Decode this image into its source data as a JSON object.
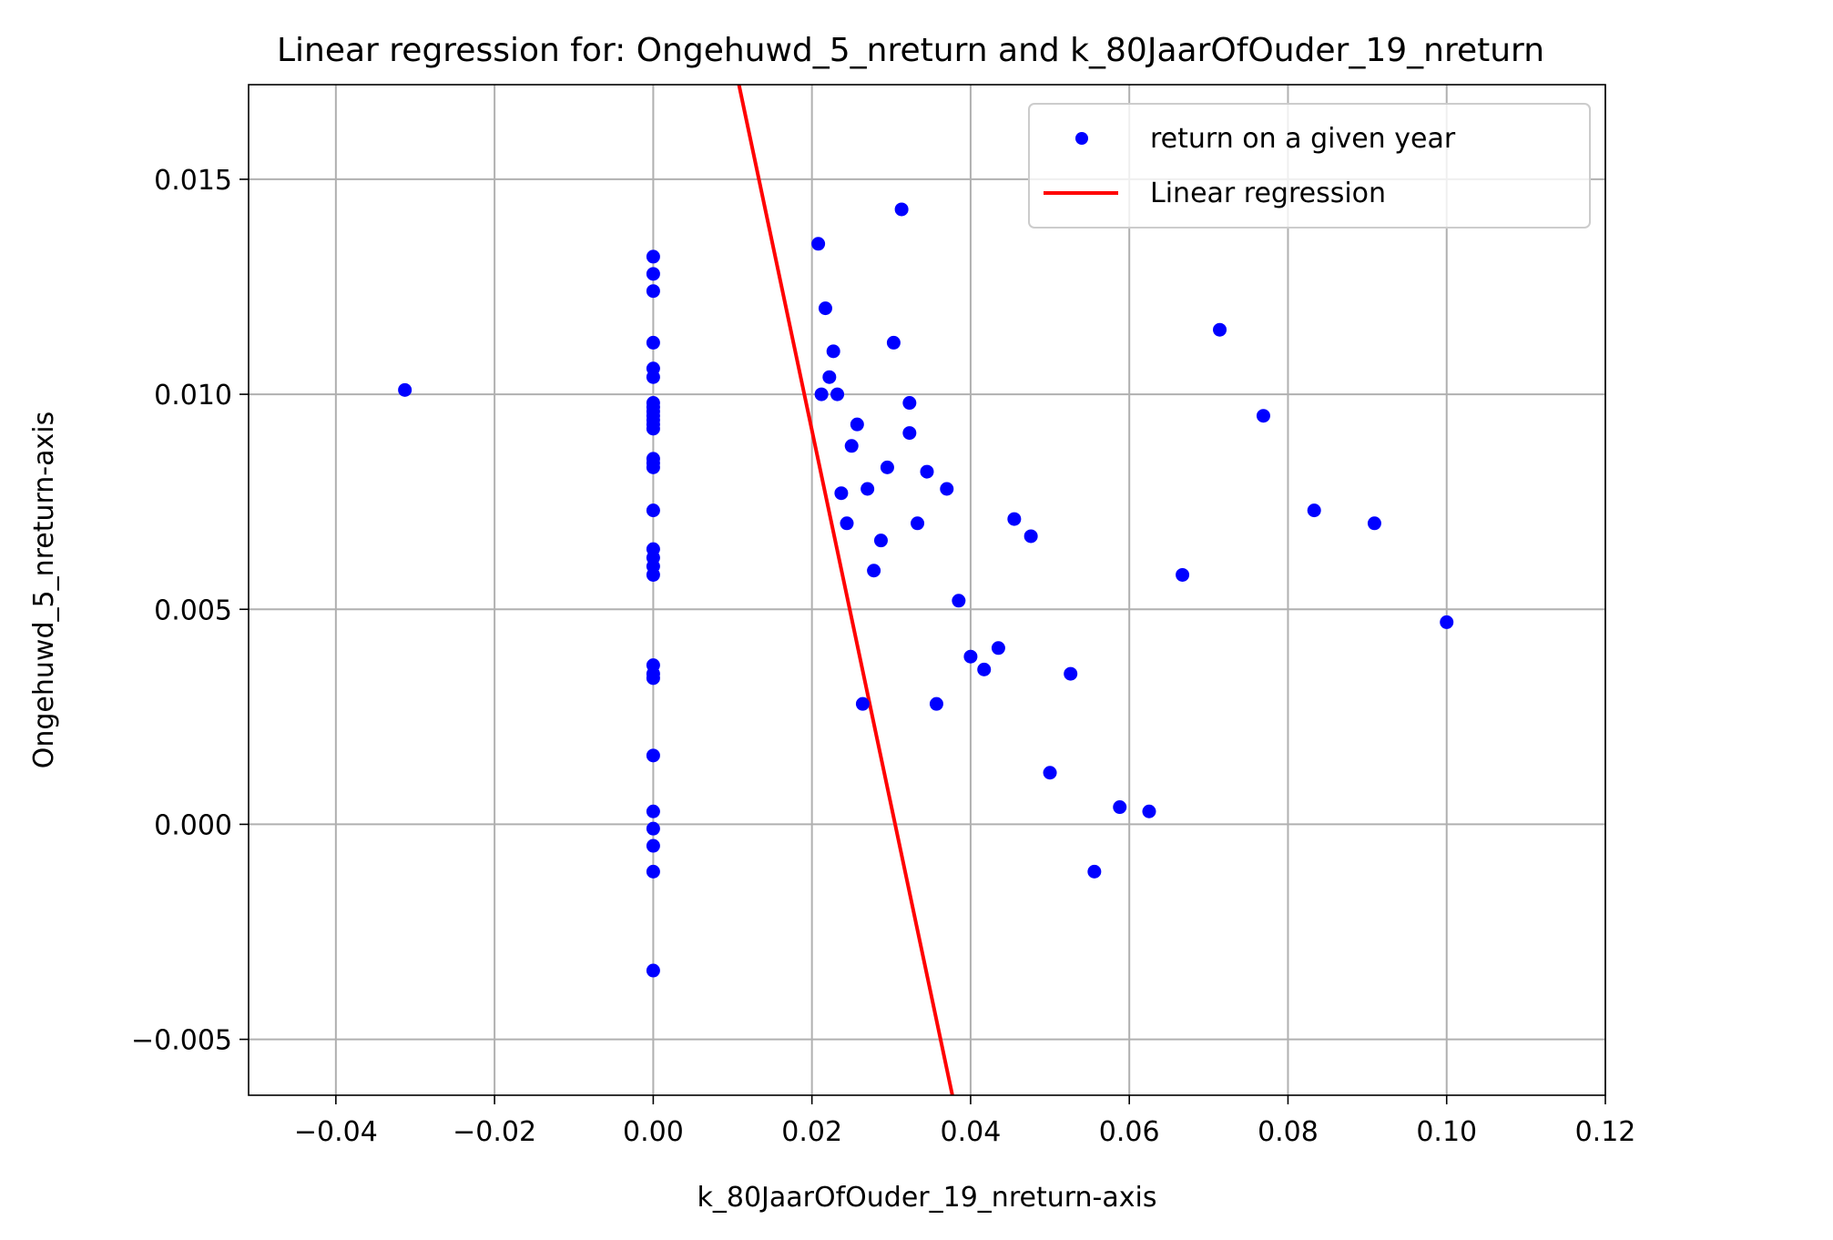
{
  "chart_data": {
    "type": "scatter",
    "title": "Linear regression for: Ongehuwd_5_nreturn and k_80JaarOfOuder_19_nreturn",
    "xlabel": "k_80JaarOfOuder_19_nreturn-axis",
    "ylabel": "Ongehuwd_5_nreturn-axis",
    "xlim": [
      -0.051,
      0.12
    ],
    "ylim": [
      -0.0063,
      0.0172
    ],
    "xticks": [
      -0.04,
      -0.02,
      0.0,
      0.02,
      0.04,
      0.06,
      0.08,
      0.1,
      0.12
    ],
    "xtick_labels": [
      "−0.04",
      "−0.02",
      "0.00",
      "0.02",
      "0.04",
      "0.06",
      "0.08",
      "0.10",
      "0.12"
    ],
    "yticks": [
      -0.005,
      0.0,
      0.005,
      0.01,
      0.015
    ],
    "ytick_labels": [
      "−0.005",
      "0.000",
      "0.005",
      "0.010",
      "0.015"
    ],
    "grid": true,
    "legend_position": "top-right",
    "series": [
      {
        "name": "return on a given year",
        "type": "scatter",
        "color": "#0000ff",
        "x": [
          -0.0313,
          0,
          0,
          0,
          0,
          0,
          0,
          0,
          0,
          0,
          0,
          0,
          0,
          0,
          0,
          0,
          0,
          0,
          0,
          0,
          0,
          0,
          0,
          0,
          0,
          0,
          0,
          0,
          0,
          0,
          0,
          0.0208,
          0.0217,
          0.0212,
          0.0222,
          0.0227,
          0.0232,
          0.025,
          0.0257,
          0.0237,
          0.0244,
          0.027,
          0.0264,
          0.0278,
          0.0287,
          0.0295,
          0.0303,
          0.0313,
          0.0323,
          0.0323,
          0.0333,
          0.0345,
          0.0357,
          0.037,
          0.0385,
          0.04,
          0.0417,
          0.0435,
          0.0455,
          0.0476,
          0.05,
          0.0526,
          0.0556,
          0.0588,
          0.0625,
          0.0667,
          0.0714,
          0.0769,
          0.0833,
          0.0909,
          0.1
        ],
        "y": [
          0.0101,
          0.0132,
          0.0128,
          0.0124,
          0.0112,
          0.0106,
          0.0104,
          0.0098,
          0.0096,
          0.0094,
          0.0093,
          0.0085,
          0.0084,
          0.0083,
          0.0073,
          0.0064,
          0.0062,
          0.006,
          0.0058,
          0.0037,
          0.0035,
          0.0034,
          0.0016,
          0.0003,
          -0.0001,
          -0.0005,
          -0.0011,
          -0.0034,
          0.0097,
          0.0095,
          0.0092,
          0.0135,
          0.012,
          0.01,
          0.0104,
          0.011,
          0.01,
          0.0088,
          0.0093,
          0.0077,
          0.007,
          0.0078,
          0.0028,
          0.0059,
          0.0066,
          0.0083,
          0.0112,
          0.0143,
          0.0098,
          0.0091,
          0.007,
          0.0082,
          0.0028,
          0.0078,
          0.0052,
          0.0039,
          0.0036,
          0.0041,
          0.0071,
          0.0067,
          0.0012,
          0.0035,
          -0.0011,
          0.0004,
          0.0003,
          0.0058,
          0.0115,
          0.0095,
          0.0073,
          0.007,
          0.0047
        ]
      },
      {
        "name": "Linear regression",
        "type": "line",
        "color": "#ff0000",
        "x": [
          0.0108,
          0.0377
        ],
        "y": [
          0.0172,
          -0.0063
        ]
      }
    ]
  }
}
